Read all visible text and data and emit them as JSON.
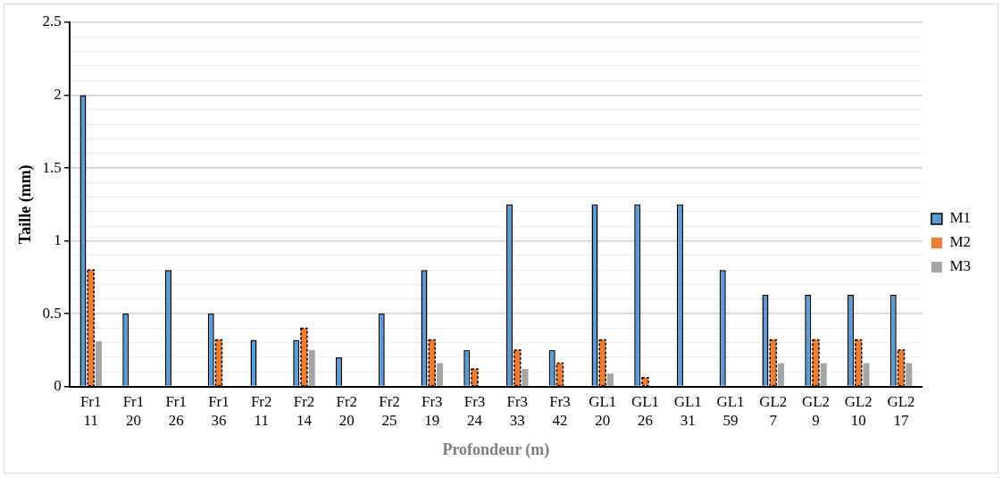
{
  "chart_data": {
    "type": "bar",
    "xlabel": "Profondeur (m)",
    "ylabel": "Taille (mm)",
    "categories": [
      "Fr1 11",
      "Fr1 20",
      "Fr1 26",
      "Fr1 36",
      "Fr2 11",
      "Fr2 14",
      "Fr2 20",
      "Fr2 25",
      "Fr3 19",
      "Fr3 24",
      "Fr3 33",
      "Fr3 42",
      "GL1 20",
      "GL1 26",
      "GL1 31",
      "GL1 59",
      "GL2 7",
      "GL2 9",
      "GL2 10",
      "GL2 17"
    ],
    "series": [
      {
        "name": "M1",
        "color": "#5b9bd5",
        "values": [
          2,
          0.5,
          0.8,
          0.5,
          0.32,
          0.32,
          0.2,
          0.5,
          0.8,
          0.25,
          1.25,
          0.25,
          1.25,
          1.25,
          1.25,
          0.8,
          0.63,
          0.63,
          0.63,
          0.63
        ]
      },
      {
        "name": "M2",
        "color": "#ed7d31",
        "line_style": "dashed",
        "values": [
          0.8,
          null,
          null,
          0.32,
          null,
          0.4,
          null,
          null,
          0.32,
          0.12,
          0.25,
          0.16,
          0.32,
          0.06,
          null,
          null,
          0.32,
          0.32,
          0.32,
          0.25
        ]
      },
      {
        "name": "M3",
        "color": "#a5a5a5",
        "values": [
          0.31,
          null,
          null,
          null,
          null,
          0.25,
          null,
          null,
          0.16,
          null,
          0.12,
          null,
          0.09,
          null,
          null,
          null,
          0.16,
          0.16,
          0.16,
          0.16
        ]
      }
    ],
    "ylim": [
      0,
      2.5
    ],
    "yticks": [
      0,
      {
        "value": 0.1,
        "label": null
      },
      {
        "value": 0.2,
        "label": null
      },
      {
        "value": 0.3,
        "label": null
      },
      {
        "value": 0.4,
        "label": null
      },
      0.5,
      {
        "value": 0.6,
        "label": null
      },
      {
        "value": 0.7,
        "label": null
      },
      {
        "value": 0.8,
        "label": null
      },
      {
        "value": 0.9,
        "label": null
      },
      1,
      {
        "value": 1.1,
        "label": null
      },
      {
        "value": 1.2,
        "label": null
      },
      {
        "value": 1.3,
        "label": null
      },
      {
        "value": 1.4,
        "label": null
      },
      1.5,
      {
        "value": 1.6,
        "label": null
      },
      {
        "value": 1.7,
        "label": null
      },
      {
        "value": 1.8,
        "label": null
      },
      {
        "value": 1.9,
        "label": null
      },
      2,
      {
        "value": 2.1,
        "label": null
      },
      {
        "value": 2.2,
        "label": null
      },
      {
        "value": 2.3,
        "label": null
      },
      {
        "value": 2.4,
        "label": null
      },
      2.5
    ],
    "grid": "y",
    "legend": "right"
  }
}
